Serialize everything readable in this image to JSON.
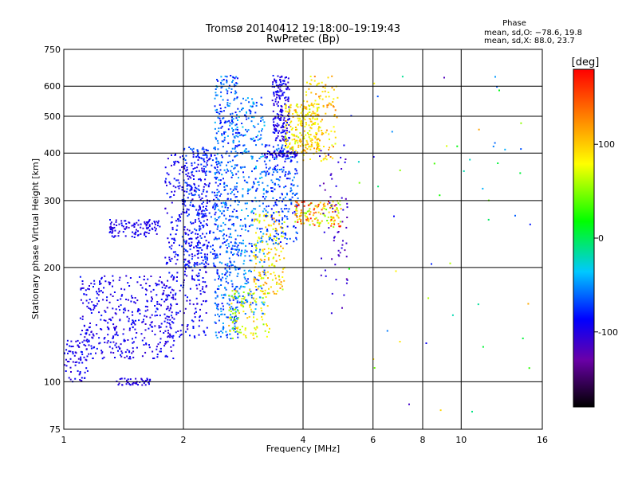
{
  "chart_data": {
    "type": "scatter",
    "title": "Tromsø 20140412 19:18:00–19:19:43",
    "subtitle": "RwPretec (Bp)",
    "phase_info": {
      "heading": "Phase",
      "line1": "mean, sd,O: −78.6, 19.8",
      "line2": "mean, sd,X:  88.0, 23.7"
    },
    "xlabel": "Frequency [MHz]",
    "ylabel": "Stationary phase Virtual Height [km]",
    "x_scale": "log",
    "y_scale": "log",
    "xlim": [
      1,
      16
    ],
    "ylim": [
      75,
      750
    ],
    "x_ticks": [
      1,
      2,
      4,
      6,
      8,
      10,
      16
    ],
    "y_ticks": [
      75,
      100,
      200,
      300,
      400,
      500,
      600,
      750
    ],
    "x_grid_lines": [
      2,
      4,
      6,
      8,
      10
    ],
    "y_grid_lines": [
      100,
      200,
      300,
      400,
      500,
      600
    ],
    "grid": true,
    "colorbar": {
      "label": "[deg]",
      "ticks": [
        100,
        0,
        -100
      ],
      "range": [
        -180,
        180
      ],
      "colors": [
        "#000000",
        "#6a00a8",
        "#0000ff",
        "#00c8ff",
        "#00ff00",
        "#ffff00",
        "#ff8000",
        "#ff0000"
      ]
    },
    "clusters": [
      {
        "f": [
          1.0,
          1.15
        ],
        "h": [
          100,
          130
        ],
        "phase": [
          -110,
          -85
        ],
        "n": 70
      },
      {
        "f": [
          1.1,
          1.9
        ],
        "h": [
          115,
          190
        ],
        "phase": [
          -110,
          -80
        ],
        "n": 420
      },
      {
        "f": [
          1.35,
          1.65
        ],
        "h": [
          98,
          102
        ],
        "phase": [
          -110,
          -90
        ],
        "n": 45
      },
      {
        "f": [
          1.3,
          1.75
        ],
        "h": [
          240,
          268
        ],
        "phase": [
          -110,
          -85
        ],
        "n": 110
      },
      {
        "f": [
          1.8,
          2.3
        ],
        "h": [
          130,
          400
        ],
        "phase": [
          -110,
          -75
        ],
        "n": 380
      },
      {
        "f": [
          2.0,
          2.45
        ],
        "h": [
          200,
          420
        ],
        "phase": [
          -100,
          -60
        ],
        "n": 260
      },
      {
        "f": [
          2.4,
          2.75
        ],
        "h": [
          130,
          640
        ],
        "phase": [
          -90,
          -40
        ],
        "n": 520
      },
      {
        "f": [
          2.75,
          3.2
        ],
        "h": [
          150,
          560
        ],
        "phase": [
          -85,
          -30
        ],
        "n": 300
      },
      {
        "f": [
          2.6,
          3.3
        ],
        "h": [
          130,
          175
        ],
        "phase": [
          40,
          110
        ],
        "n": 110
      },
      {
        "f": [
          3.0,
          3.6
        ],
        "h": [
          170,
          280
        ],
        "phase": [
          60,
          130
        ],
        "n": 160
      },
      {
        "f": [
          3.2,
          3.9
        ],
        "h": [
          230,
          420
        ],
        "phase": [
          -90,
          -50
        ],
        "n": 230
      },
      {
        "f": [
          3.35,
          3.7
        ],
        "h": [
          430,
          640
        ],
        "phase": [
          -110,
          -80
        ],
        "n": 180
      },
      {
        "f": [
          3.6,
          4.4
        ],
        "h": [
          400,
          540
        ],
        "phase": [
          60,
          120
        ],
        "n": 200
      },
      {
        "f": [
          4.0,
          4.9
        ],
        "h": [
          380,
          640
        ],
        "phase": [
          70,
          130
        ],
        "n": 130
      },
      {
        "f": [
          3.8,
          5.0
        ],
        "h": [
          255,
          300
        ],
        "phase": [
          40,
          180
        ],
        "n": 150
      },
      {
        "f": [
          3.2,
          3.9
        ],
        "h": [
          390,
          405
        ],
        "phase": [
          -110,
          -85
        ],
        "n": 50
      },
      {
        "f": [
          4.4,
          5.2
        ],
        "h": [
          150,
          420
        ],
        "phase": [
          -130,
          -90
        ],
        "n": 60
      },
      {
        "f": [
          5.0,
          15.0
        ],
        "h": [
          80,
          650
        ],
        "phase": [
          -120,
          120
        ],
        "n": 55
      }
    ]
  }
}
